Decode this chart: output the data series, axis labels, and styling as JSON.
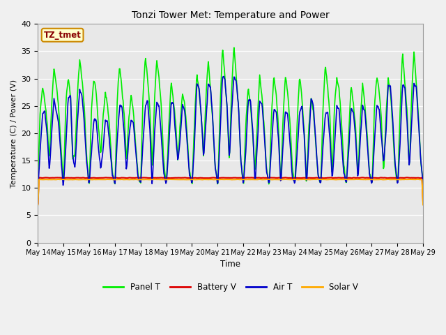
{
  "title": "Tonzi Tower Met: Temperature and Power",
  "xlabel": "Time",
  "ylabel": "Temperature (C) / Power (V)",
  "ylim": [
    0,
    40
  ],
  "yticks": [
    0,
    5,
    10,
    15,
    20,
    25,
    30,
    35,
    40
  ],
  "plot_bg_color": "#e8e8e8",
  "fig_bg_color": "#f0f0f0",
  "label_box": "TZ_tmet",
  "label_box_color": "#ffffcc",
  "label_box_edge": "#cc8800",
  "label_box_text_color": "#880000",
  "series": {
    "panel_t": {
      "label": "Panel T",
      "color": "#00ee00",
      "linewidth": 1.2
    },
    "battery_v": {
      "label": "Battery V",
      "color": "#dd0000",
      "linewidth": 1.5
    },
    "air_t": {
      "label": "Air T",
      "color": "#0000cc",
      "linewidth": 1.2
    },
    "solar_v": {
      "label": "Solar V",
      "color": "#ffaa00",
      "linewidth": 1.5
    }
  },
  "xtick_labels": [
    "May 14",
    "May 15",
    "May 16",
    "May 17",
    "May 18",
    "May 19",
    "May 20",
    "May 21",
    "May 22",
    "May 23",
    "May 24",
    "May 25",
    "May 26",
    "May 27",
    "May 28",
    "May 29"
  ],
  "num_days": 15,
  "points_per_day": 48,
  "panel_day_data": [
    [
      11.5,
      24.0,
      28.5,
      26.0,
      22.0,
      15.0,
      25.0,
      32.0,
      29.0,
      25.0,
      18.0,
      11.5
    ],
    [
      11.2,
      26.0,
      30.0,
      27.0,
      15.0,
      16.5,
      27.0,
      33.5,
      30.0,
      25.0,
      16.0,
      11.2
    ],
    [
      11.0,
      25.0,
      30.0,
      27.5,
      21.0,
      16.0,
      23.0,
      27.5,
      25.0,
      20.0,
      13.0,
      11.0
    ],
    [
      11.0,
      27.0,
      32.5,
      28.0,
      23.5,
      14.5,
      22.5,
      27.0,
      24.0,
      18.0,
      12.5,
      11.0
    ],
    [
      11.0,
      27.0,
      34.0,
      30.0,
      24.0,
      13.5,
      26.0,
      33.5,
      30.0,
      24.5,
      15.0,
      11.0
    ],
    [
      11.0,
      21.0,
      29.5,
      26.0,
      22.0,
      14.5,
      22.0,
      27.5,
      25.0,
      20.0,
      13.0,
      11.0
    ],
    [
      11.0,
      22.0,
      31.0,
      27.5,
      23.0,
      15.5,
      26.5,
      33.5,
      28.0,
      22.0,
      14.0,
      11.0
    ],
    [
      11.0,
      25.0,
      36.0,
      30.5,
      24.5,
      14.5,
      28.0,
      36.0,
      30.5,
      25.0,
      15.0,
      11.0
    ],
    [
      11.0,
      22.0,
      28.5,
      25.0,
      19.5,
      13.0,
      22.0,
      30.5,
      27.0,
      21.0,
      13.5,
      11.0
    ],
    [
      11.0,
      24.0,
      30.5,
      27.0,
      21.0,
      10.5,
      23.0,
      30.5,
      27.5,
      22.0,
      14.0,
      11.0
    ],
    [
      11.0,
      23.0,
      30.5,
      26.5,
      20.5,
      10.5,
      21.0,
      26.5,
      24.0,
      18.5,
      12.5,
      11.0
    ],
    [
      11.0,
      25.0,
      32.5,
      28.5,
      23.0,
      12.0,
      25.0,
      30.0,
      28.0,
      22.5,
      14.5,
      11.0
    ],
    [
      11.0,
      20.0,
      29.0,
      25.5,
      21.0,
      12.0,
      22.0,
      29.0,
      25.5,
      20.0,
      13.0,
      11.0
    ],
    [
      11.0,
      25.0,
      30.5,
      28.0,
      22.5,
      12.5,
      23.0,
      30.0,
      27.5,
      21.0,
      13.5,
      11.0
    ],
    [
      11.0,
      25.0,
      35.0,
      29.5,
      24.0,
      13.0,
      27.0,
      35.0,
      29.5,
      23.0,
      15.0,
      11.0
    ]
  ],
  "air_day_data": [
    [
      9.5,
      17.0,
      23.5,
      24.0,
      20.0,
      13.0,
      20.0,
      26.5,
      24.0,
      22.0,
      16.0,
      10.5
    ],
    [
      11.0,
      18.0,
      26.5,
      27.0,
      15.5,
      13.5,
      22.0,
      28.0,
      27.0,
      22.0,
      15.0,
      11.0
    ],
    [
      11.0,
      17.0,
      22.5,
      22.5,
      17.0,
      13.5,
      17.0,
      22.5,
      22.0,
      17.5,
      12.5,
      11.0
    ],
    [
      11.0,
      19.0,
      25.0,
      25.0,
      20.0,
      13.0,
      19.0,
      22.5,
      22.0,
      17.0,
      12.0,
      11.0
    ],
    [
      11.0,
      18.5,
      25.0,
      26.0,
      20.5,
      10.0,
      20.0,
      25.5,
      25.0,
      19.5,
      13.0,
      11.0
    ],
    [
      11.0,
      17.5,
      25.5,
      25.5,
      19.5,
      15.0,
      19.0,
      25.5,
      24.0,
      18.5,
      12.5,
      11.0
    ],
    [
      11.0,
      18.0,
      29.0,
      28.5,
      23.0,
      15.5,
      22.0,
      29.0,
      28.5,
      22.5,
      14.0,
      11.0
    ],
    [
      11.0,
      20.0,
      30.5,
      30.0,
      25.0,
      15.0,
      24.0,
      30.5,
      29.5,
      25.0,
      15.0,
      11.0
    ],
    [
      11.0,
      17.0,
      26.0,
      26.0,
      20.5,
      10.5,
      18.0,
      26.0,
      25.5,
      20.0,
      13.0,
      11.0
    ],
    [
      11.0,
      18.0,
      24.5,
      24.0,
      19.0,
      10.5,
      18.0,
      24.0,
      23.5,
      18.5,
      12.0,
      11.0
    ],
    [
      11.0,
      17.0,
      24.0,
      25.0,
      19.5,
      10.5,
      18.0,
      26.5,
      25.0,
      19.0,
      12.5,
      11.0
    ],
    [
      11.0,
      18.0,
      23.5,
      24.0,
      19.0,
      11.5,
      17.5,
      25.0,
      24.5,
      18.5,
      13.0,
      11.0
    ],
    [
      11.0,
      17.0,
      24.5,
      24.0,
      19.0,
      11.5,
      18.5,
      25.0,
      24.0,
      19.0,
      12.5,
      11.0
    ],
    [
      11.0,
      18.5,
      25.0,
      24.5,
      19.5,
      14.5,
      20.0,
      29.0,
      28.5,
      22.5,
      14.5,
      11.0
    ],
    [
      11.0,
      18.5,
      29.0,
      28.5,
      22.0,
      13.5,
      22.0,
      29.0,
      28.5,
      22.0,
      15.0,
      11.0
    ]
  ],
  "battery_v_base": 11.85,
  "solar_v_base": 11.55
}
